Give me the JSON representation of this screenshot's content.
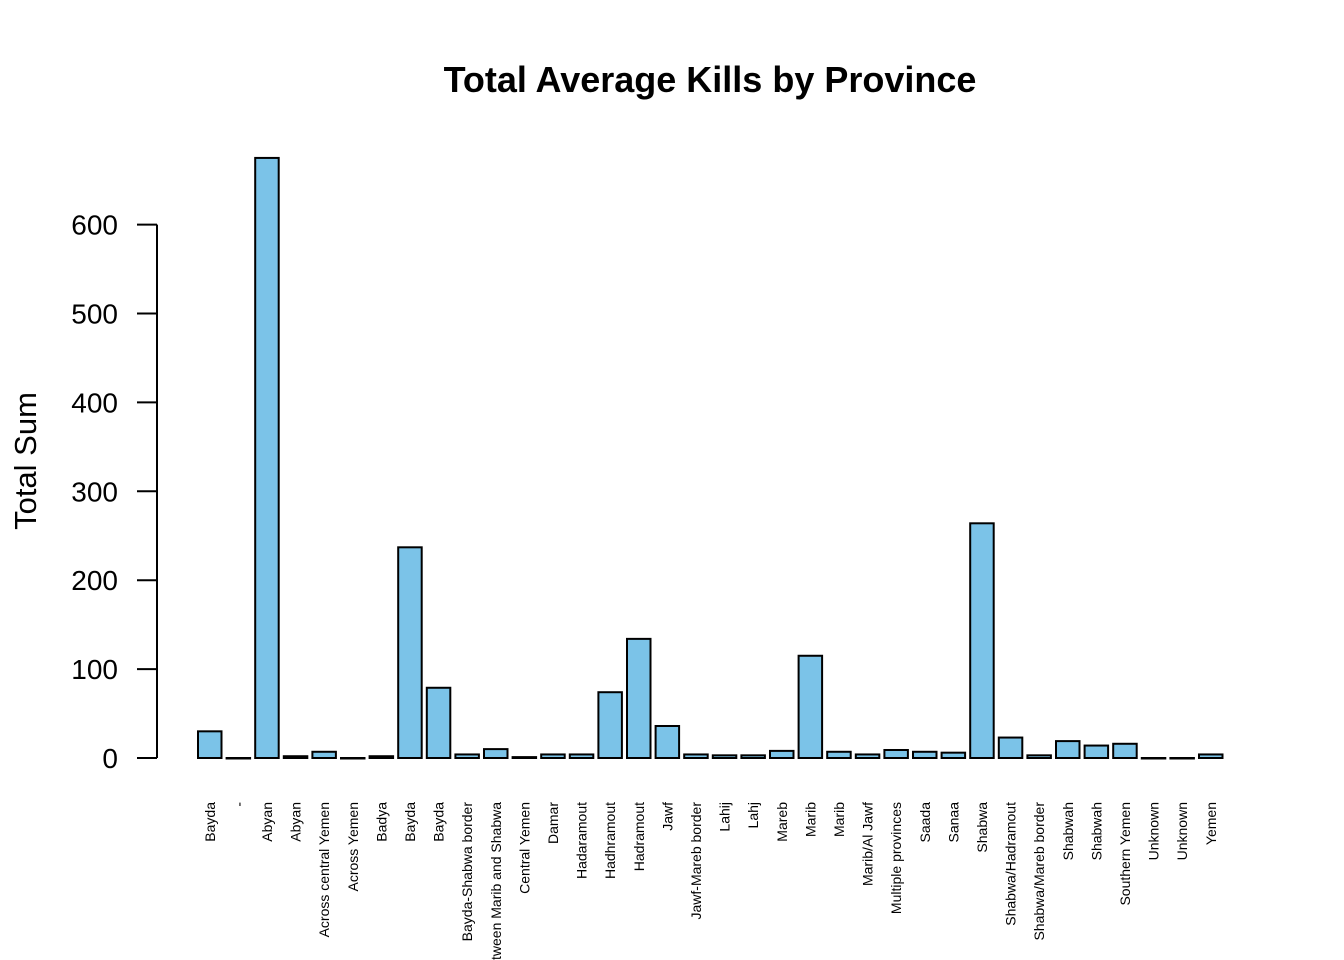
{
  "chart_data": {
    "type": "bar",
    "title": "Total Average Kills by Province",
    "xlabel": "",
    "ylabel": "Total Sum",
    "ylim": [
      0,
      680
    ],
    "yticks": [
      0,
      100,
      200,
      300,
      400,
      500,
      600
    ],
    "bar_color": "#7BC3E8",
    "grid": false,
    "categories": [
      " Bayda",
      "-",
      "Abyan",
      "Abyan ",
      "Across central Yemen",
      "Across Yemen",
      "Badya",
      "Bayda",
      "Bayda ",
      "Bayda-Shabwa border",
      "Between Marib and Shabwa",
      "Central Yemen",
      "Damar",
      "Hadaramout",
      "Hadhramout",
      "Hadramout",
      "Jawf",
      "Jawf-Mareb border",
      "Lahij",
      "Lahj",
      "Mareb",
      "Marib",
      "Marib ",
      "Marib/Al Jawf",
      "Multiple provinces",
      "Saada",
      "Sanaa",
      "Shabwa",
      "Shabwa/Hadramout",
      "Shabwa/Mareb border",
      "Shabwah",
      "Shabwah ",
      "Southern Yemen",
      "Unknown",
      "Unknown ",
      "Yemen"
    ],
    "values": [
      30,
      0,
      675,
      2,
      7,
      0,
      2,
      237,
      79,
      4,
      10,
      1,
      4,
      4,
      74,
      134,
      36,
      4,
      3,
      3,
      8,
      115,
      7,
      4,
      9,
      7,
      6,
      264,
      23,
      3,
      19,
      14,
      16,
      0,
      0,
      4
    ]
  }
}
